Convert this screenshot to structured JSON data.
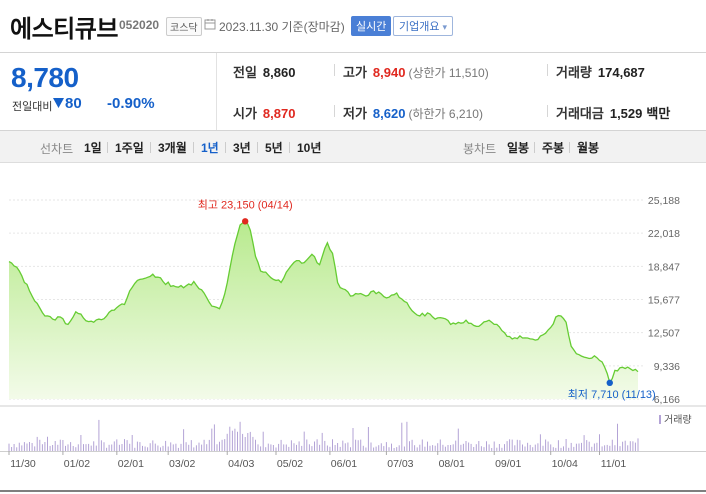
{
  "header": {
    "name": "에스티큐브",
    "code": "052020",
    "market": "코스닥",
    "date": "2023.11.30 기준(장마감)",
    "realtime_label": "실시간",
    "company_label": "기업개요",
    "company_arrow": "▾"
  },
  "price": {
    "current": "8,780",
    "change_label": "전일대비",
    "change_value": "80",
    "change_rate": "-0.90%"
  },
  "metrics": {
    "prev_close_label": "전일",
    "prev_close": "8,860",
    "high_label": "고가",
    "high": "8,940",
    "upper_limit": "(상한가 11,510)",
    "volume_label": "거래량",
    "volume": "174,687",
    "open_label": "시가",
    "open": "8,870",
    "low_label": "저가",
    "low": "8,620",
    "lower_limit": "(하한가 6,210)",
    "amount_label": "거래대금",
    "amount": "1,529",
    "amount_unit": "백만"
  },
  "periods": {
    "line_label": "선차트",
    "line_options": [
      "1일",
      "1주일",
      "3개월",
      "1년",
      "3년",
      "5년",
      "10년"
    ],
    "active": "1년",
    "candle_label": "봉차트",
    "candle_options": [
      "일봉",
      "주봉",
      "월봉"
    ]
  },
  "colors": {
    "up": "#e0281f",
    "down": "#1560c9",
    "line": "#66cc33",
    "fill_top": "#b8ea8e",
    "fill_bottom": "#f3fbe9",
    "volume": "#b3a3d6"
  },
  "chart_data": {
    "type": "area",
    "ylim": [
      6166,
      25188
    ],
    "yticks": [
      "25,188",
      "22,018",
      "18,847",
      "15,677",
      "12,507",
      "9,336",
      "6,166"
    ],
    "ytick_values": [
      25188,
      22018,
      18847,
      15677,
      12507,
      9336,
      6166
    ],
    "xticks": [
      "11/30",
      "01/02",
      "02/01",
      "03/02",
      "04/03",
      "05/02",
      "06/01",
      "07/03",
      "08/01",
      "09/01",
      "10/04",
      "11/01"
    ],
    "xtick_index": [
      0,
      21,
      42,
      62,
      85,
      104,
      125,
      147,
      167,
      189,
      211,
      230
    ],
    "n_points": 246,
    "series": [
      {
        "keypoints": [
          [
            0,
            19300
          ],
          [
            4,
            18400
          ],
          [
            8,
            16500
          ],
          [
            11,
            15300
          ],
          [
            14,
            14100
          ],
          [
            17,
            13800
          ],
          [
            20,
            14000
          ],
          [
            23,
            13300
          ],
          [
            26,
            14500
          ],
          [
            29,
            13900
          ],
          [
            32,
            13600
          ],
          [
            35,
            13800
          ],
          [
            38,
            14100
          ],
          [
            42,
            14900
          ],
          [
            45,
            15200
          ],
          [
            47,
            16500
          ],
          [
            50,
            17500
          ],
          [
            53,
            17700
          ],
          [
            56,
            18100
          ],
          [
            60,
            17400
          ],
          [
            64,
            17000
          ],
          [
            68,
            16800
          ],
          [
            72,
            17400
          ],
          [
            75,
            16600
          ],
          [
            78,
            15400
          ],
          [
            80,
            15000
          ],
          [
            82,
            14800
          ],
          [
            84,
            16200
          ],
          [
            86,
            18600
          ],
          [
            88,
            21000
          ],
          [
            90,
            22800
          ],
          [
            92,
            23150
          ],
          [
            94,
            22300
          ],
          [
            96,
            19800
          ],
          [
            98,
            18400
          ],
          [
            100,
            18300
          ],
          [
            103,
            17600
          ],
          [
            106,
            17300
          ],
          [
            109,
            18600
          ],
          [
            112,
            19400
          ],
          [
            115,
            19200
          ],
          [
            118,
            20000
          ],
          [
            121,
            19000
          ],
          [
            124,
            21100
          ],
          [
            126,
            20100
          ],
          [
            128,
            17300
          ],
          [
            130,
            16700
          ],
          [
            133,
            16000
          ],
          [
            136,
            16200
          ],
          [
            139,
            16000
          ],
          [
            142,
            16500
          ],
          [
            145,
            16200
          ],
          [
            148,
            15900
          ],
          [
            151,
            16300
          ],
          [
            154,
            15500
          ],
          [
            157,
            14600
          ],
          [
            160,
            14100
          ],
          [
            163,
            14400
          ],
          [
            166,
            13800
          ],
          [
            169,
            13900
          ],
          [
            172,
            13300
          ],
          [
            175,
            13500
          ],
          [
            178,
            13700
          ],
          [
            181,
            13200
          ],
          [
            184,
            13300
          ],
          [
            187,
            13700
          ],
          [
            190,
            13300
          ],
          [
            193,
            12500
          ],
          [
            196,
            11900
          ],
          [
            199,
            12200
          ],
          [
            202,
            12000
          ],
          [
            205,
            11800
          ],
          [
            208,
            12300
          ],
          [
            211,
            13000
          ],
          [
            213,
            14000
          ],
          [
            215,
            14100
          ],
          [
            217,
            13500
          ],
          [
            219,
            11200
          ],
          [
            222,
            10400
          ],
          [
            225,
            10100
          ],
          [
            228,
            10300
          ],
          [
            231,
            9700
          ],
          [
            233,
            8600
          ],
          [
            234,
            7710
          ],
          [
            236,
            8900
          ],
          [
            239,
            9200
          ],
          [
            242,
            9050
          ],
          [
            245,
            8780
          ]
        ]
      }
    ],
    "annotations": {
      "max_label": "최고 23,150 (04/14)",
      "max_index": 92,
      "max_value": 23150,
      "min_label": "최저 7,710 (11/13)",
      "min_index": 234,
      "min_value": 7710
    },
    "volume_label": "거래량",
    "volume_seed": 7
  }
}
